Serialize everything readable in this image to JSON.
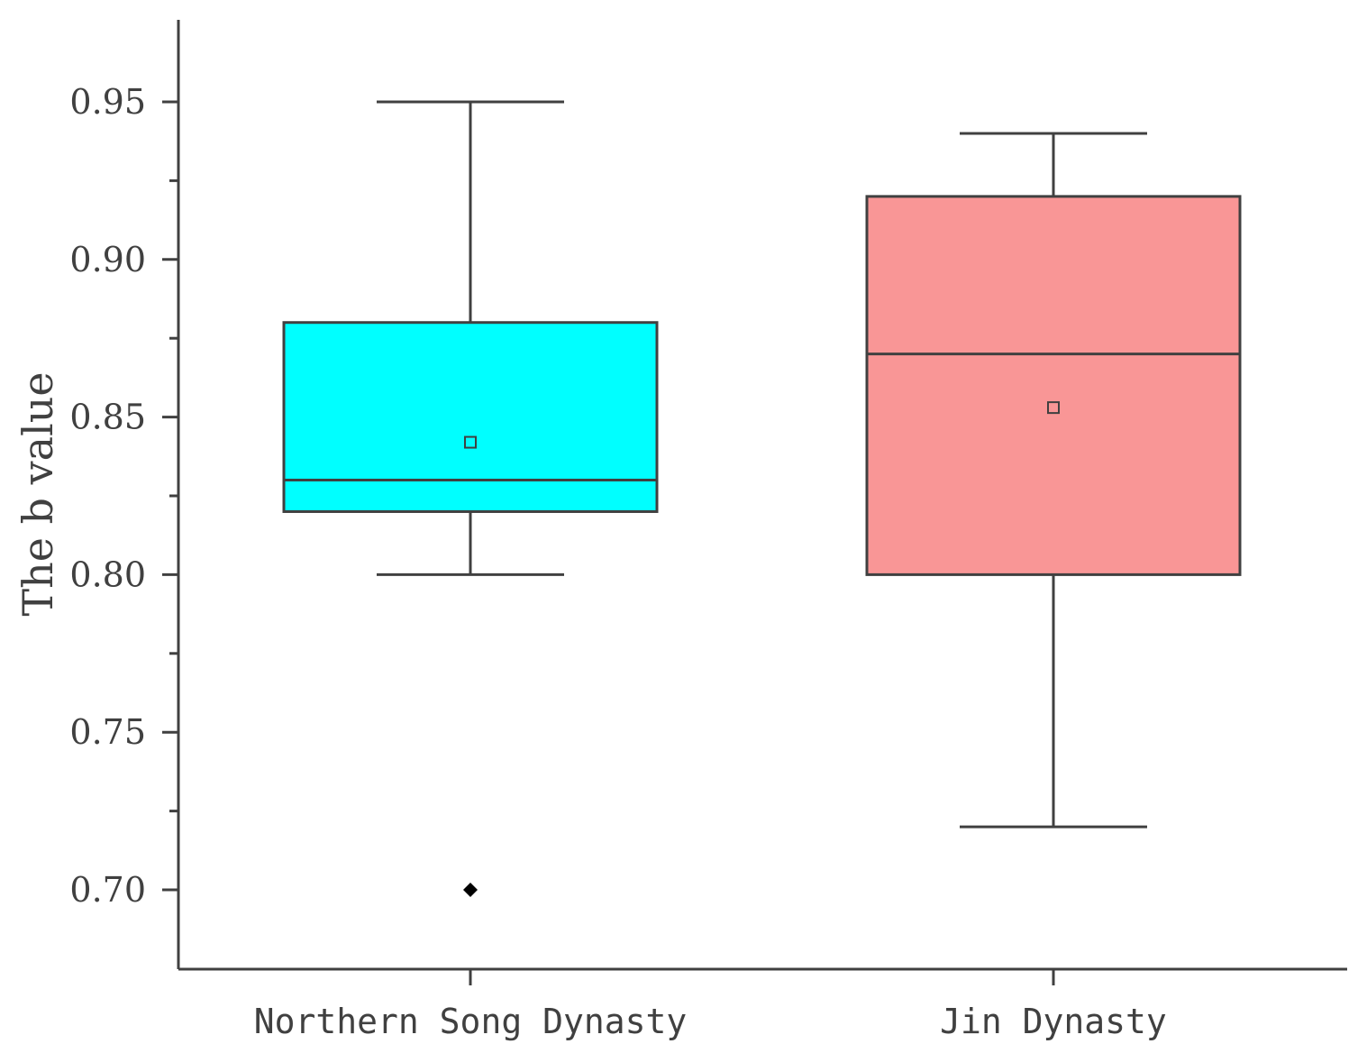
{
  "chart_data": {
    "type": "box",
    "title": "",
    "xlabel": "",
    "ylabel": "The b value",
    "ylim": [
      0.675,
      0.975
    ],
    "yticks": [
      0.7,
      0.75,
      0.8,
      0.85,
      0.9,
      0.95
    ],
    "ytick_labels": [
      "0.70",
      "0.75",
      "0.80",
      "0.85",
      "0.90",
      "0.95"
    ],
    "grid": false,
    "categories": [
      "Northern Song Dynasty",
      "Jin Dynasty"
    ],
    "series": [
      {
        "category": "Northern Song Dynasty",
        "whisker_low": 0.8,
        "q1": 0.82,
        "median": 0.83,
        "q3": 0.88,
        "whisker_high": 0.95,
        "mean": 0.842,
        "outliers": [
          0.7
        ],
        "color": "#00FFFF"
      },
      {
        "category": "Jin Dynasty",
        "whisker_low": 0.72,
        "q1": 0.8,
        "median": 0.87,
        "q3": 0.92,
        "whisker_high": 0.94,
        "mean": 0.853,
        "outliers": [],
        "color": "#F99696"
      }
    ],
    "line_color": "#404040"
  }
}
